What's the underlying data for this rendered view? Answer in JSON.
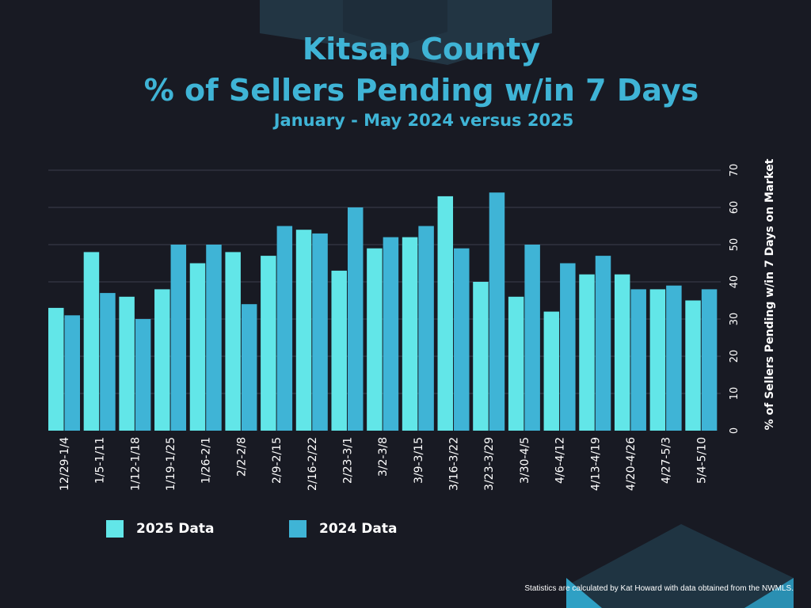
{
  "header": {
    "title_line1": "Kitsap County",
    "title_line2": "% of Sellers Pending w/in 7 Days",
    "subtitle": "January - May 2024 versus 2025"
  },
  "footnote": "Statistics are calculated by Kat Howard with data obtained from the NWMLS.",
  "colors": {
    "background": "#181a23",
    "title": "#3fb4d6",
    "series_2025": "#62e6e8",
    "series_2024": "#3fb4d6",
    "gridline": "#3c3f4c",
    "text": "#ffffff"
  },
  "chart_data": {
    "type": "bar",
    "categories": [
      "12/29-1/4",
      "1/5-1/11",
      "1/12-1/18",
      "1/19-1/25",
      "1/26-2/1",
      "2/2-2/8",
      "2/9-2/15",
      "2/16-2/22",
      "2/23-3/1",
      "3/2-3/8",
      "3/9-3/15",
      "3/16-3/22",
      "3/23-3/29",
      "3/30-4/5",
      "4/6-4/12",
      "4/13-4/19",
      "4/20-4/26",
      "4/27-5/3",
      "5/4-5/10"
    ],
    "series": [
      {
        "name": "2025 Data",
        "color": "#62e6e8",
        "values": [
          33,
          48,
          36,
          38,
          45,
          48,
          47,
          54,
          43,
          49,
          52,
          63,
          40,
          36,
          32,
          42,
          42,
          38,
          35
        ]
      },
      {
        "name": "2024 Data",
        "color": "#3fb4d6",
        "values": [
          31,
          37,
          30,
          50,
          50,
          34,
          55,
          53,
          60,
          52,
          55,
          49,
          64,
          50,
          45,
          47,
          38,
          39,
          38
        ]
      }
    ],
    "title": "Kitsap County % of Sellers Pending w/in 7 Days",
    "subtitle": "January - May 2024 versus 2025",
    "xlabel": "",
    "ylabel": "% of Sellers Pending w/in 7 Days on Market",
    "ylim": [
      0,
      70
    ],
    "yticks": [
      0,
      10,
      20,
      30,
      40,
      50,
      60,
      70
    ],
    "y_axis_side": "right",
    "grid": true,
    "legend_position": "bottom-left"
  }
}
